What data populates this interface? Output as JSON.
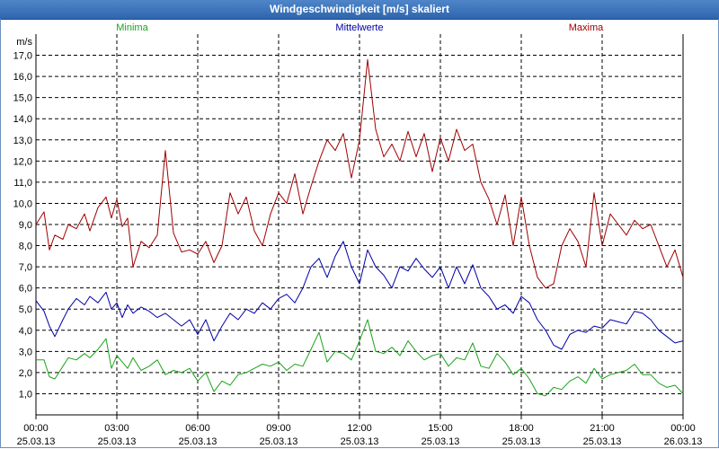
{
  "window": {
    "title": "Windgeschwindigkeit [m/s] skaliert"
  },
  "chart_data": {
    "type": "line",
    "title": "Windgeschwindigkeit [m/s] skaliert",
    "ylabel": "m/s",
    "ylim": [
      0,
      18
    ],
    "yticks": [
      "1,0",
      "2,0",
      "3,0",
      "4,0",
      "5,0",
      "6,0",
      "7,0",
      "8,0",
      "9,0",
      "10,0",
      "11,0",
      "12,0",
      "13,0",
      "14,0",
      "15,0",
      "16,0",
      "17,0"
    ],
    "xlim": [
      0,
      24
    ],
    "xticks": [
      {
        "time": "00:00",
        "date": "25.03.13"
      },
      {
        "time": "03:00",
        "date": "25.03.13"
      },
      {
        "time": "06:00",
        "date": "25.03.13"
      },
      {
        "time": "09:00",
        "date": "25.03.13"
      },
      {
        "time": "12:00",
        "date": "25.03.13"
      },
      {
        "time": "15:00",
        "date": "25.03.13"
      },
      {
        "time": "18:00",
        "date": "25.03.13"
      },
      {
        "time": "21:00",
        "date": "25.03.13"
      },
      {
        "time": "00:00",
        "date": "26.03.13"
      }
    ],
    "series": [
      {
        "name": "Minima",
        "color": "#1aa31a",
        "x": [
          0,
          0.3,
          0.5,
          0.7,
          1.0,
          1.2,
          1.5,
          1.8,
          2.0,
          2.3,
          2.6,
          2.8,
          3.0,
          3.2,
          3.4,
          3.6,
          3.9,
          4.2,
          4.5,
          4.8,
          5.1,
          5.4,
          5.7,
          6.0,
          6.3,
          6.6,
          6.9,
          7.2,
          7.5,
          7.8,
          8.1,
          8.4,
          8.7,
          9.0,
          9.3,
          9.6,
          9.9,
          10.2,
          10.5,
          10.8,
          11.1,
          11.4,
          11.7,
          12.0,
          12.3,
          12.6,
          12.9,
          13.2,
          13.5,
          13.8,
          14.1,
          14.4,
          14.7,
          15.0,
          15.3,
          15.6,
          15.9,
          16.2,
          16.5,
          16.8,
          17.1,
          17.4,
          17.7,
          18.0,
          18.3,
          18.6,
          18.9,
          19.2,
          19.5,
          19.8,
          20.1,
          20.4,
          20.7,
          21.0,
          21.3,
          21.6,
          21.9,
          22.2,
          22.5,
          22.8,
          23.1,
          23.4,
          23.7,
          24.0
        ],
        "values": [
          2.6,
          2.6,
          1.8,
          1.7,
          2.3,
          2.7,
          2.6,
          2.9,
          2.7,
          3.1,
          3.6,
          2.2,
          2.8,
          2.5,
          2.2,
          2.7,
          2.1,
          2.3,
          2.6,
          1.9,
          2.1,
          2.0,
          2.2,
          1.6,
          2.0,
          1.1,
          1.6,
          1.4,
          1.9,
          2.0,
          2.2,
          2.4,
          2.3,
          2.5,
          2.1,
          2.4,
          2.3,
          3.1,
          3.9,
          2.5,
          3.0,
          2.9,
          2.6,
          3.5,
          4.5,
          3.0,
          2.9,
          3.2,
          2.8,
          3.5,
          3.0,
          2.6,
          2.8,
          2.9,
          2.3,
          2.7,
          2.6,
          3.4,
          2.3,
          2.2,
          2.9,
          2.5,
          1.9,
          2.2,
          1.7,
          1.0,
          0.9,
          1.3,
          1.2,
          1.6,
          1.8,
          1.5,
          2.2,
          1.7,
          1.9,
          2.0,
          2.1,
          2.4,
          1.9,
          1.9,
          1.5,
          1.3,
          1.4,
          1.0
        ]
      },
      {
        "name": "Mittelwerte",
        "color": "#0000a8",
        "x": [
          0,
          0.3,
          0.5,
          0.7,
          1.0,
          1.2,
          1.5,
          1.8,
          2.0,
          2.3,
          2.6,
          2.8,
          3.0,
          3.2,
          3.4,
          3.6,
          3.9,
          4.2,
          4.5,
          4.8,
          5.1,
          5.4,
          5.7,
          6.0,
          6.3,
          6.6,
          6.9,
          7.2,
          7.5,
          7.8,
          8.1,
          8.4,
          8.7,
          9.0,
          9.3,
          9.6,
          9.9,
          10.2,
          10.5,
          10.8,
          11.1,
          11.4,
          11.7,
          12.0,
          12.3,
          12.6,
          12.9,
          13.2,
          13.5,
          13.8,
          14.1,
          14.4,
          14.7,
          15.0,
          15.3,
          15.6,
          15.9,
          16.2,
          16.5,
          16.8,
          17.1,
          17.4,
          17.7,
          18.0,
          18.3,
          18.6,
          18.9,
          19.2,
          19.5,
          19.8,
          20.1,
          20.4,
          20.7,
          21.0,
          21.3,
          21.6,
          21.9,
          22.2,
          22.5,
          22.8,
          23.1,
          23.4,
          23.7,
          24.0
        ],
        "values": [
          5.4,
          4.9,
          4.2,
          3.7,
          4.5,
          5.0,
          5.5,
          5.2,
          5.6,
          5.3,
          5.8,
          5.0,
          5.3,
          4.6,
          5.2,
          4.8,
          5.1,
          4.9,
          4.6,
          4.8,
          4.5,
          4.2,
          4.5,
          3.8,
          4.5,
          3.5,
          4.2,
          4.8,
          4.5,
          5.0,
          4.8,
          5.3,
          5.0,
          5.5,
          5.7,
          5.3,
          6.0,
          7.0,
          7.4,
          6.5,
          7.5,
          8.2,
          7.0,
          6.2,
          7.8,
          7.0,
          6.6,
          6.0,
          7.0,
          6.8,
          7.4,
          6.9,
          6.5,
          7.0,
          6.0,
          7.0,
          6.2,
          7.1,
          6.0,
          5.6,
          5.0,
          5.2,
          4.8,
          5.6,
          5.3,
          4.5,
          4.0,
          3.3,
          3.1,
          3.8,
          4.0,
          3.9,
          4.2,
          4.1,
          4.5,
          4.4,
          4.3,
          4.9,
          4.8,
          4.5,
          4.0,
          3.7,
          3.4,
          3.5
        ]
      },
      {
        "name": "Maxima",
        "color": "#a00000",
        "x": [
          0,
          0.3,
          0.5,
          0.7,
          1.0,
          1.2,
          1.5,
          1.8,
          2.0,
          2.3,
          2.6,
          2.8,
          3.0,
          3.2,
          3.4,
          3.6,
          3.9,
          4.2,
          4.5,
          4.8,
          5.1,
          5.4,
          5.7,
          6.0,
          6.3,
          6.6,
          6.9,
          7.2,
          7.5,
          7.8,
          8.1,
          8.4,
          8.7,
          9.0,
          9.3,
          9.6,
          9.9,
          10.2,
          10.5,
          10.8,
          11.1,
          11.4,
          11.7,
          12.0,
          12.3,
          12.6,
          12.9,
          13.2,
          13.5,
          13.8,
          14.1,
          14.4,
          14.7,
          15.0,
          15.3,
          15.6,
          15.9,
          16.2,
          16.5,
          16.8,
          17.1,
          17.4,
          17.7,
          18.0,
          18.3,
          18.6,
          18.9,
          19.2,
          19.5,
          19.8,
          20.1,
          20.4,
          20.7,
          21.0,
          21.3,
          21.6,
          21.9,
          22.2,
          22.5,
          22.8,
          23.1,
          23.4,
          23.7,
          24.0
        ],
        "values": [
          9.0,
          9.6,
          7.8,
          8.5,
          8.3,
          9.0,
          8.8,
          9.5,
          8.7,
          9.8,
          10.3,
          9.3,
          10.2,
          8.9,
          9.3,
          7.0,
          8.2,
          7.9,
          8.5,
          12.5,
          8.6,
          7.7,
          7.8,
          7.6,
          8.2,
          7.2,
          8.0,
          10.5,
          9.5,
          10.3,
          8.7,
          8.0,
          9.5,
          10.5,
          10.0,
          11.4,
          9.5,
          10.8,
          12.0,
          13.0,
          12.5,
          13.3,
          11.2,
          13.0,
          16.8,
          13.5,
          12.2,
          12.8,
          12.0,
          13.4,
          12.2,
          13.3,
          11.5,
          13.1,
          12.0,
          13.5,
          12.5,
          12.8,
          11.0,
          10.2,
          9.0,
          10.4,
          8.0,
          10.3,
          8.0,
          6.5,
          6.0,
          6.2,
          8.0,
          8.8,
          8.2,
          7.0,
          10.5,
          8.0,
          9.5,
          9.0,
          8.5,
          9.2,
          8.8,
          9.0,
          8.0,
          7.0,
          7.8,
          6.5
        ]
      }
    ]
  }
}
